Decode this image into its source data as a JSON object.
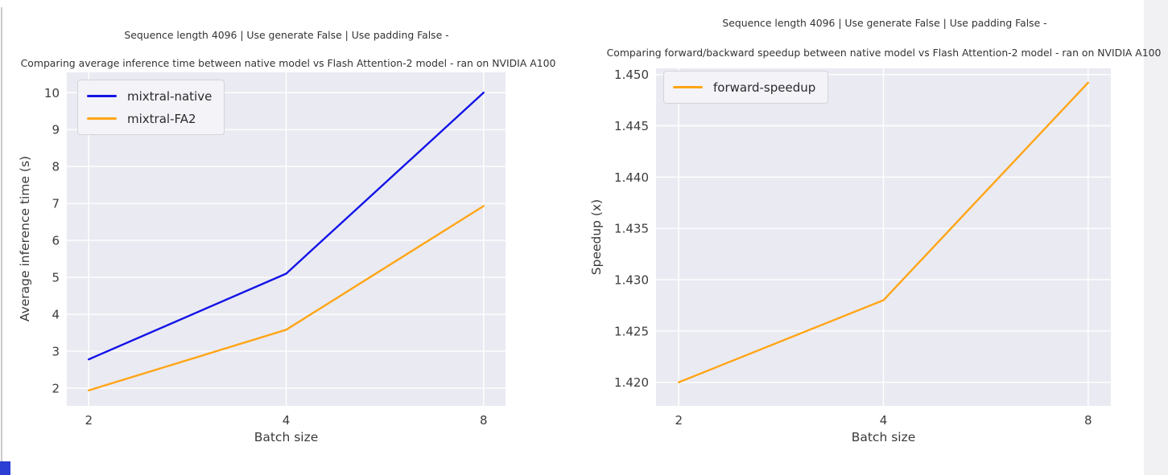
{
  "page": {
    "background": "#ffffff",
    "accents": {
      "window_edge_line": "#cbcbcb",
      "right_gutter": "#f1f0f2",
      "corner_square_blue": "#2b3fd4"
    }
  },
  "chart_data": [
    {
      "type": "line",
      "suptitle": "Sequence length 4096 | Use generate False | Use padding False -",
      "title": "Comparing average inference time between native model vs Flash Attention-2 model - ran on NVIDIA A100",
      "xlabel": "Batch size",
      "ylabel": "Average inference time (s)",
      "categories": [
        "2",
        "4",
        "8"
      ],
      "x_layout": "categories equally spaced (log2-like axis)",
      "yticks": [
        "2",
        "3",
        "4",
        "5",
        "6",
        "7",
        "8",
        "9",
        "10"
      ],
      "ylim": [
        1.52,
        10.55
      ],
      "grid": true,
      "plot_bg": "#eaeaf2",
      "grid_color": "#ffffff",
      "legend_position": "upper left",
      "series": [
        {
          "name": "mixtral-native",
          "color": "#1313e8",
          "values": [
            2.78,
            5.1,
            10.0
          ]
        },
        {
          "name": "mixtral-FA2",
          "color": "#ffa516",
          "values": [
            1.94,
            3.58,
            6.93
          ]
        }
      ]
    },
    {
      "type": "line",
      "suptitle": "Sequence length 4096 | Use generate False | Use padding False -",
      "title": "Comparing forward/backward speedup between native model vs Flash Attention-2 model - ran on NVIDIA A100",
      "xlabel": "Batch size",
      "ylabel": "Speedup (x)",
      "categories": [
        "2",
        "4",
        "8"
      ],
      "x_layout": "categories equally spaced (log2-like axis)",
      "yticks": [
        "1.420",
        "1.425",
        "1.430",
        "1.435",
        "1.440",
        "1.445",
        "1.450"
      ],
      "ylim": [
        1.4177,
        1.4506
      ],
      "grid": true,
      "plot_bg": "#eaeaf2",
      "grid_color": "#ffffff",
      "legend_position": "upper left",
      "series": [
        {
          "name": "forward-speedup",
          "color": "#ffa516",
          "values": [
            1.42,
            1.428,
            1.4492
          ]
        }
      ]
    }
  ]
}
